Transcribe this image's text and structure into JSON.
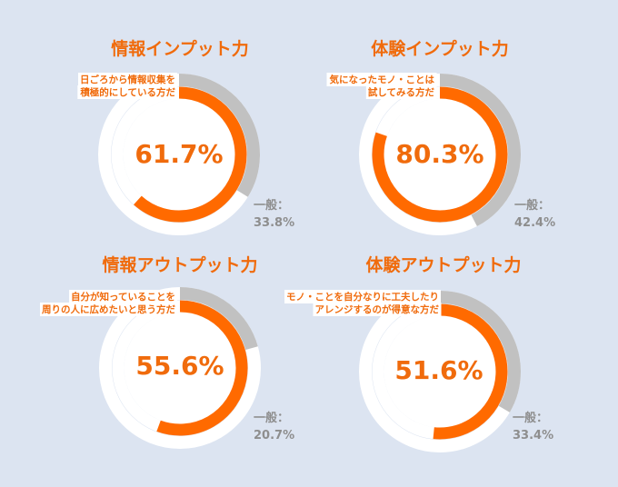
{
  "colors": {
    "background": "#dce4f1",
    "accent": "#ff6a00",
    "general": "#c1c1c1",
    "track": "#ffffff",
    "text_accent": "#f06b0c",
    "text_general": "#8e8e8e"
  },
  "chart_data": [
    {
      "type": "pie",
      "title": "情報インプット力",
      "description": [
        "日ごろから情報収集を",
        "積極的にしている方だ"
      ],
      "series": [
        {
          "values": [
            61.7
          ]
        },
        {
          "values": [
            33.8
          ]
        }
      ],
      "center_label": "61.7%",
      "general_label": "一般：",
      "general_value": "33.8%"
    },
    {
      "type": "pie",
      "title": "体験インプット力",
      "description": [
        "気になったモノ・ことは",
        "試してみる方だ"
      ],
      "series": [
        {
          "values": [
            80.3
          ]
        },
        {
          "values": [
            42.4
          ]
        }
      ],
      "center_label": "80.3%",
      "general_label": "一般：",
      "general_value": "42.4%"
    },
    {
      "type": "pie",
      "title": "情報アウトプット力",
      "description": [
        "自分が知っていることを",
        "周りの人に広めたいと思う方だ"
      ],
      "series": [
        {
          "values": [
            55.6
          ]
        },
        {
          "values": [
            20.7
          ]
        }
      ],
      "center_label": "55.6%",
      "general_label": "一般：",
      "general_value": "20.7%"
    },
    {
      "type": "pie",
      "title": "体験アウトプット力",
      "description": [
        "モノ・ことを自分なりに工夫したり",
        "アレンジするのが得意な方だ"
      ],
      "series": [
        {
          "values": [
            51.6
          ]
        },
        {
          "values": [
            33.4
          ]
        }
      ],
      "center_label": "51.6%",
      "general_label": "一般：",
      "general_value": "33.4%"
    }
  ]
}
